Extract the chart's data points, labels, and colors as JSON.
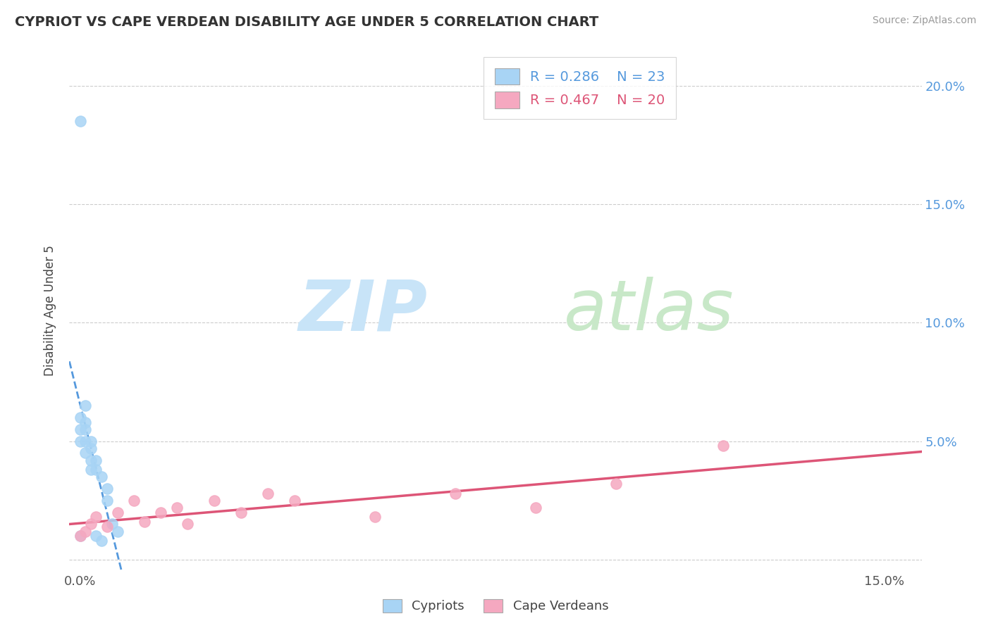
{
  "title": "CYPRIOT VS CAPE VERDEAN DISABILITY AGE UNDER 5 CORRELATION CHART",
  "source": "Source: ZipAtlas.com",
  "ylabel": "Disability Age Under 5",
  "legend_label1": "Cypriots",
  "legend_label2": "Cape Verdeans",
  "R1": 0.286,
  "N1": 23,
  "R2": 0.467,
  "N2": 20,
  "color1": "#a8d4f5",
  "color2": "#f5a8c0",
  "trendline_color1": "#5599dd",
  "trendline_color2": "#dd5577",
  "xlim": [
    -0.002,
    0.157
  ],
  "ylim": [
    -0.005,
    0.215
  ],
  "xtick_positions": [
    0.0,
    0.15
  ],
  "xtick_labels": [
    "0.0%",
    "15.0%"
  ],
  "ytick_positions": [
    0.05,
    0.1,
    0.15,
    0.2
  ],
  "ytick_labels": [
    "5.0%",
    "10.0%",
    "15.0%",
    "20.0%"
  ],
  "grid_yticks": [
    0.0,
    0.05,
    0.1,
    0.15,
    0.2
  ],
  "cypriot_x": [
    0.0,
    0.0,
    0.0,
    0.0,
    0.0,
    0.001,
    0.001,
    0.001,
    0.001,
    0.001,
    0.002,
    0.002,
    0.002,
    0.002,
    0.003,
    0.003,
    0.003,
    0.004,
    0.004,
    0.005,
    0.005,
    0.006,
    0.007
  ],
  "cypriot_y": [
    0.185,
    0.06,
    0.055,
    0.05,
    0.01,
    0.065,
    0.058,
    0.055,
    0.05,
    0.045,
    0.05,
    0.047,
    0.042,
    0.038,
    0.042,
    0.038,
    0.01,
    0.035,
    0.008,
    0.03,
    0.025,
    0.015,
    0.012
  ],
  "capeverdean_x": [
    0.0,
    0.001,
    0.002,
    0.003,
    0.005,
    0.007,
    0.01,
    0.012,
    0.015,
    0.018,
    0.02,
    0.025,
    0.03,
    0.035,
    0.04,
    0.055,
    0.07,
    0.085,
    0.1,
    0.12
  ],
  "capeverdean_y": [
    0.01,
    0.012,
    0.015,
    0.018,
    0.014,
    0.02,
    0.025,
    0.016,
    0.02,
    0.022,
    0.015,
    0.025,
    0.02,
    0.028,
    0.025,
    0.018,
    0.028,
    0.022,
    0.032,
    0.048
  ]
}
